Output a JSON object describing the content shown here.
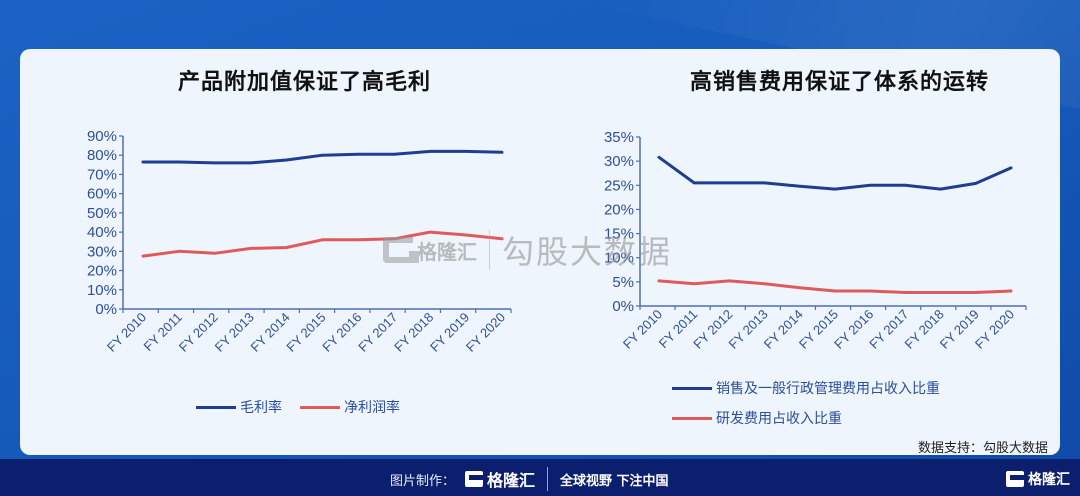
{
  "chart_data": [
    {
      "type": "line",
      "title": "产品附加值保证了高毛利",
      "categories": [
        "FY 2010",
        "FY 2011",
        "FY 2012",
        "FY 2013",
        "FY 2014",
        "FY 2015",
        "FY 2016",
        "FY 2017",
        "FY 2018",
        "FY 2019",
        "FY 2020"
      ],
      "series": [
        {
          "name": "毛利率",
          "color": "#1f3e93",
          "values": [
            0.765,
            0.765,
            0.76,
            0.76,
            0.775,
            0.8,
            0.805,
            0.805,
            0.82,
            0.82,
            0.815
          ]
        },
        {
          "name": "净利润率",
          "color": "#e05a5a",
          "values": [
            0.275,
            0.3,
            0.29,
            0.315,
            0.32,
            0.36,
            0.36,
            0.365,
            0.4,
            0.385,
            0.365
          ]
        }
      ],
      "yticks": [
        "0%",
        "10%",
        "20%",
        "30%",
        "40%",
        "50%",
        "60%",
        "70%",
        "80%",
        "90%"
      ],
      "ylim": [
        0,
        0.9
      ],
      "xlabel": "",
      "ylabel": "",
      "grid": false,
      "legend_position": "bottom"
    },
    {
      "type": "line",
      "title": "高销售费用保证了体系的运转",
      "categories": [
        "FY 2010",
        "FY 2011",
        "FY 2012",
        "FY 2013",
        "FY 2014",
        "FY 2015",
        "FY 2016",
        "FY 2017",
        "FY 2018",
        "FY 2019",
        "FY 2020"
      ],
      "series": [
        {
          "name": "销售及一般行政管理费用占收入比重",
          "color": "#1f3e93",
          "values": [
            0.308,
            0.255,
            0.255,
            0.255,
            0.248,
            0.242,
            0.25,
            0.25,
            0.242,
            0.254,
            0.286
          ]
        },
        {
          "name": "研发费用占收入比重",
          "color": "#e05a5a",
          "values": [
            0.052,
            0.046,
            0.052,
            0.046,
            0.038,
            0.031,
            0.031,
            0.028,
            0.028,
            0.028,
            0.031
          ]
        }
      ],
      "yticks": [
        "0%",
        "5%",
        "10%",
        "15%",
        "20%",
        "25%",
        "30%",
        "35%"
      ],
      "ylim": [
        0,
        0.35
      ],
      "xlabel": "",
      "ylabel": "",
      "grid": false,
      "legend_position": "bottom"
    }
  ],
  "left": {
    "title": "产品附加值保证了高毛利",
    "legend": [
      {
        "label": "毛利率",
        "color": "#1f3e93"
      },
      {
        "label": "净利润率",
        "color": "#e05a5a"
      }
    ]
  },
  "right": {
    "title": "高销售费用保证了体系的运转",
    "legend": [
      {
        "label": "销售及一般行政管理费用占收入比重",
        "color": "#1f3e93"
      },
      {
        "label": "研发费用占收入比重",
        "color": "#e05a5a"
      }
    ]
  },
  "source": "数据支持：勾股大数据",
  "watermark": {
    "brand": "格隆汇",
    "text": "勾股大数据"
  },
  "footer": {
    "made_by": "图片制作：",
    "brand": "格隆汇",
    "slogan": "全球视野 下注中国",
    "right_brand": "格隆汇"
  },
  "colors": {
    "axis": "#4f6fb5",
    "text": "#2f4f9a",
    "card": "#eef5fc",
    "footer": "#0b1f6e"
  }
}
